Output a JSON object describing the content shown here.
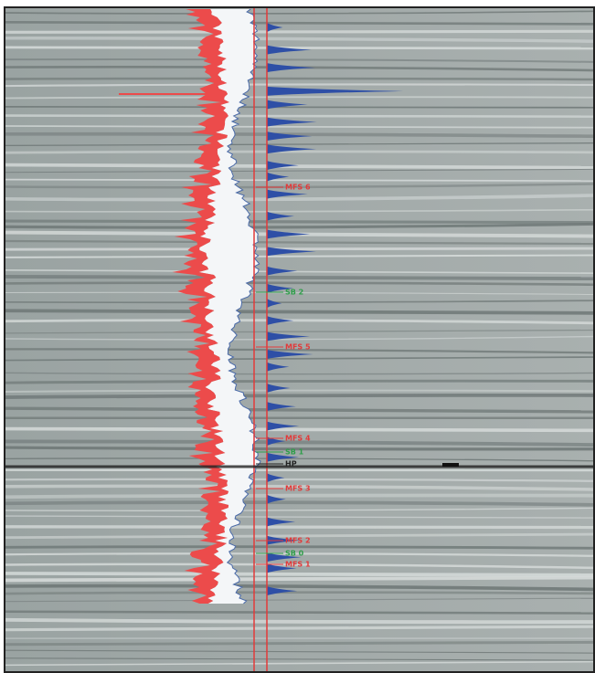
{
  "horizons": [
    {
      "text": "MFS 6",
      "kind": "red"
    },
    {
      "text": "SB 2",
      "kind": "green"
    },
    {
      "text": "MFS 5",
      "kind": "red"
    },
    {
      "text": "MFS 4",
      "kind": "red"
    },
    {
      "text": "SB 1",
      "kind": "green"
    },
    {
      "text": "HP",
      "kind": "dark"
    },
    {
      "text": "MFS 3",
      "kind": "red"
    },
    {
      "text": "MFS 2",
      "kind": "red"
    },
    {
      "text": "SB 0",
      "kind": "green"
    },
    {
      "text": "MFS 1",
      "kind": "red"
    }
  ]
}
